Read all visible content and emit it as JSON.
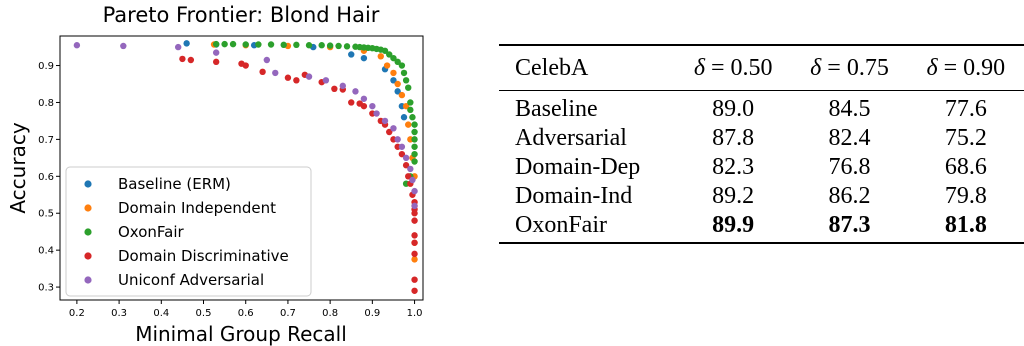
{
  "chart_data": {
    "type": "scatter",
    "title": "Pareto Frontier: Blond Hair",
    "xlabel": "Minimal Group Recall",
    "ylabel": "Accuracy",
    "xlim": [
      0.16,
      1.02
    ],
    "ylim": [
      0.265,
      0.98
    ],
    "xticks": [
      "0.2",
      "0.3",
      "0.4",
      "0.5",
      "0.6",
      "0.7",
      "0.8",
      "0.9",
      "1.0"
    ],
    "yticks": [
      "0.3",
      "0.4",
      "0.5",
      "0.6",
      "0.7",
      "0.8",
      "0.9"
    ],
    "grid": false,
    "legend_position": "lower-left",
    "series": [
      {
        "name": "Baseline (ERM)",
        "color": "#1f77b4",
        "x": [
          0.46,
          0.53,
          0.62,
          0.76,
          0.85,
          0.88,
          0.93,
          0.95,
          0.96,
          0.97,
          0.975
        ],
        "y": [
          0.96,
          0.957,
          0.955,
          0.95,
          0.93,
          0.92,
          0.89,
          0.86,
          0.83,
          0.79,
          0.76
        ]
      },
      {
        "name": "Domain Independent",
        "color": "#ff7f0e",
        "x": [
          0.525,
          0.6,
          0.7,
          0.8,
          0.88,
          0.92,
          0.935,
          0.95,
          0.96,
          0.97,
          0.98,
          0.985,
          0.99,
          0.995,
          1.0,
          1.0,
          1.0,
          1.0
        ],
        "y": [
          0.957,
          0.955,
          0.953,
          0.95,
          0.94,
          0.925,
          0.9,
          0.88,
          0.85,
          0.82,
          0.79,
          0.74,
          0.7,
          0.65,
          0.6,
          0.52,
          0.42,
          0.375
        ]
      },
      {
        "name": "OxonFair",
        "color": "#2ca02c",
        "x": [
          0.53,
          0.55,
          0.57,
          0.6,
          0.63,
          0.66,
          0.69,
          0.72,
          0.75,
          0.78,
          0.8,
          0.82,
          0.84,
          0.86,
          0.87,
          0.88,
          0.89,
          0.9,
          0.91,
          0.92,
          0.93,
          0.94,
          0.95,
          0.96,
          0.97,
          0.975,
          0.98,
          0.985,
          0.99,
          0.99,
          0.995,
          1.0,
          1.0,
          1.0,
          1.0,
          1.0,
          1.0,
          0.99,
          0.98
        ],
        "y": [
          0.958,
          0.958,
          0.958,
          0.957,
          0.957,
          0.957,
          0.956,
          0.956,
          0.955,
          0.955,
          0.954,
          0.953,
          0.952,
          0.951,
          0.95,
          0.949,
          0.948,
          0.947,
          0.945,
          0.943,
          0.94,
          0.93,
          0.92,
          0.91,
          0.9,
          0.88,
          0.86,
          0.84,
          0.8,
          0.78,
          0.76,
          0.74,
          0.72,
          0.7,
          0.68,
          0.66,
          0.64,
          0.6,
          0.58
        ]
      },
      {
        "name": "Domain Discriminative",
        "color": "#d62728",
        "x": [
          0.45,
          0.47,
          0.53,
          0.59,
          0.6,
          0.64,
          0.7,
          0.72,
          0.74,
          0.78,
          0.81,
          0.83,
          0.85,
          0.87,
          0.88,
          0.9,
          0.92,
          0.93,
          0.94,
          0.95,
          0.96,
          0.97,
          0.98,
          0.985,
          0.99,
          0.995,
          1.0,
          1.0,
          1.0,
          1.0,
          1.0,
          1.0,
          1.0,
          1.0,
          1.0
        ],
        "y": [
          0.918,
          0.915,
          0.91,
          0.905,
          0.9,
          0.883,
          0.867,
          0.86,
          0.875,
          0.855,
          0.837,
          0.835,
          0.8,
          0.797,
          0.79,
          0.77,
          0.75,
          0.74,
          0.72,
          0.7,
          0.68,
          0.66,
          0.63,
          0.6,
          0.58,
          0.55,
          0.53,
          0.51,
          0.48,
          0.44,
          0.42,
          0.39,
          0.32,
          0.29,
          0.5
        ]
      },
      {
        "name": "Uniconf Adversarial",
        "color": "#9467bd",
        "x": [
          0.2,
          0.31,
          0.44,
          0.53,
          0.65,
          0.67,
          0.75,
          0.79,
          0.83,
          0.86,
          0.88,
          0.9,
          0.91,
          0.93,
          0.95,
          0.96,
          0.97,
          0.98,
          0.99,
          0.995,
          1.0,
          1.0
        ],
        "y": [
          0.955,
          0.953,
          0.95,
          0.935,
          0.915,
          0.88,
          0.87,
          0.86,
          0.845,
          0.83,
          0.81,
          0.79,
          0.77,
          0.75,
          0.73,
          0.7,
          0.68,
          0.65,
          0.62,
          0.59,
          0.56,
          0.52
        ]
      }
    ]
  },
  "table": {
    "header": [
      "CelebA",
      "0.50",
      "0.75",
      "0.90"
    ],
    "delta_symbol": "δ",
    "rows": [
      {
        "method": "Baseline",
        "values": [
          "89.0",
          "84.5",
          "77.6"
        ]
      },
      {
        "method": "Adversarial",
        "values": [
          "87.8",
          "82.4",
          "75.2"
        ]
      },
      {
        "method": "Domain-Dep",
        "values": [
          "82.3",
          "76.8",
          "68.6"
        ]
      },
      {
        "method": "Domain-Ind",
        "values": [
          "89.2",
          "86.2",
          "79.8"
        ]
      },
      {
        "method": "OxonFair",
        "values": [
          "89.9",
          "87.3",
          "81.8"
        ]
      }
    ]
  }
}
